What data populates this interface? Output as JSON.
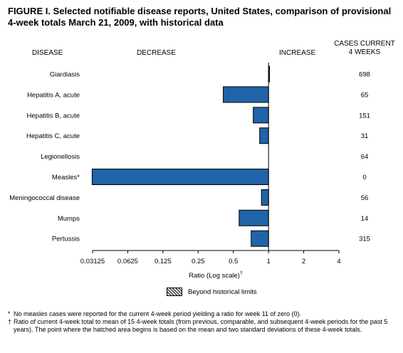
{
  "figure": {
    "title": "FIGURE I. Selected notifiable disease reports, United States, comparison of provisional 4-week totals March 21, 2009, with historical data"
  },
  "headers": {
    "disease": "DISEASE",
    "decrease": "DECREASE",
    "increase": "INCREASE",
    "cases_line1": "CASES CURRENT",
    "cases_line2": "4 WEEKS"
  },
  "chart_data": {
    "type": "bar",
    "orientation": "horizontal",
    "scale": "log2",
    "baseline": 1,
    "categories": [
      "Giardiasis",
      "Hepatitis A, acute",
      "Hepatitis B, acute",
      "Hepatitis C, acute",
      "Legionellosis",
      "Measles*",
      "Meningococcal disease",
      "Mumps",
      "Pertussis"
    ],
    "values": [
      1.02,
      0.41,
      0.74,
      0.84,
      1.0,
      0.031,
      0.87,
      0.56,
      0.71
    ],
    "cases_current_4_weeks": [
      "698",
      "65",
      "151",
      "31",
      "64",
      "0",
      "56",
      "14",
      "315"
    ],
    "xlabel": "Ratio (Log scale)",
    "xlabel_mark": "†",
    "xticks": [
      0.03125,
      0.0625,
      0.125,
      0.25,
      0.5,
      1,
      2,
      4
    ],
    "xtick_labels": [
      "0.03125",
      "0.0625",
      "0.125",
      "0.25",
      "0.5",
      "1",
      "2",
      "4"
    ],
    "xlim": [
      0.03125,
      4
    ],
    "bar_color": "#1f63a8",
    "legend": {
      "label": "Beyond historical limits",
      "pattern": "hatched"
    }
  },
  "footnotes": [
    {
      "mark": "*",
      "text": "No measles cases were reported for the current 4-week period yielding a ratio for week 11 of zero (0)."
    },
    {
      "mark": "†",
      "text": "Ratio of current 4-week total to mean of 15 4-week totals (from previous, comparable, and subsequent 4-week periods for the past 5 years). The point where the hatched area begins is based on the mean and two standard deviations of these 4-week totals."
    }
  ]
}
